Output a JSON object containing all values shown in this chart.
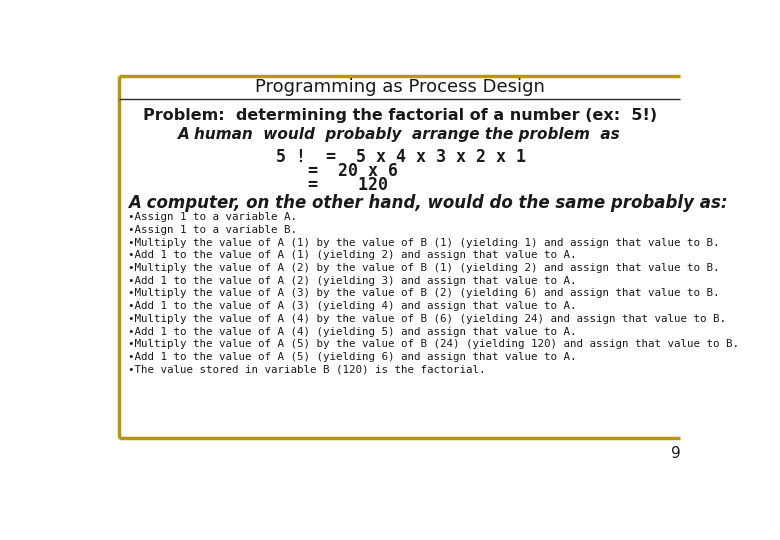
{
  "title": "Programming as Process Design",
  "background_color": "#ffffff",
  "border_color": "#b8960c",
  "separator_color": "#2a2a2a",
  "text_color": "#1a1a1a",
  "page_number": "9",
  "problem_line": "Problem:  determining the factorial of a number (ex:  5!)",
  "human_line": "A human  would  probably  arrange the problem  as",
  "math_line1": "5 !  =  5 x 4 x 3 x 2 x 1",
  "math_line2": "=  20 x 6",
  "math_line3": "=    120",
  "computer_line": "A computer, on the other hand, would do the same probably as:",
  "bullet_lines": [
    "•Assign 1 to a variable A.",
    "•Assign 1 to a variable B.",
    "•Multiply the value of A (1) by the value of B (1) (yielding 1) and assign that value to B.",
    "•Add 1 to the value of A (1) (yielding 2) and assign that value to A.",
    "•Multiply the value of A (2) by the value of B (1) (yielding 2) and assign that value to B.",
    "•Add 1 to the value of A (2) (yielding 3) and assign that value to A.",
    "•Multiply the value of A (3) by the value of B (2) (yielding 6) and assign that value to B.",
    "•Add 1 to the value of A (3) (yielding 4) and assign that value to A.",
    "•Multiply the value of A (4) by the value of B (6) (yielding 24) and assign that value to B.",
    "•Add 1 to the value of A (4) (yielding 5) and assign that value to A.",
    "•Multiply the value of A (5) by the value of B (24) (yielding 120) and assign that value to B.",
    "•Add 1 to the value of A (5) (yielding 6) and assign that value to A.",
    "•The value stored in variable B (120) is the factorial."
  ]
}
